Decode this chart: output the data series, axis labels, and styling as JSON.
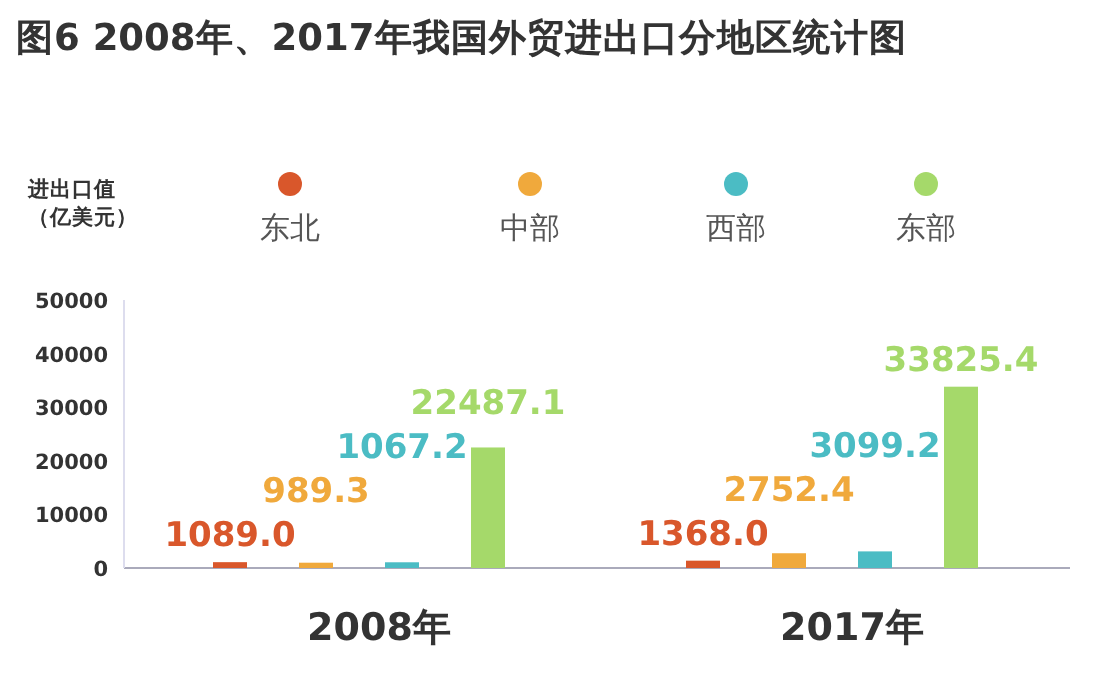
{
  "chart_data": {
    "type": "bar",
    "title": "图6  2008年、2017年我国外贸进出口分地区统计图",
    "ylabel": "进出口值（亿美元）",
    "categories": [
      "2008年",
      "2017年"
    ],
    "ylim": [
      0,
      50000
    ],
    "yticks": [
      0,
      10000,
      20000,
      30000,
      40000,
      50000
    ],
    "legend": "top",
    "series": [
      {
        "name": "东北",
        "color": "#d9572b",
        "values": [
          1089.0,
          1368.0
        ],
        "value_labels": [
          "1089.0",
          "1368.0"
        ]
      },
      {
        "name": "中部",
        "color": "#f0a93c",
        "values": [
          989.3,
          2752.4
        ],
        "value_labels": [
          "989.3",
          "2752.4"
        ]
      },
      {
        "name": "西部",
        "color": "#4bbcc4",
        "values": [
          1067.2,
          3099.2
        ],
        "value_labels": [
          "1067.2",
          "3099.2"
        ]
      },
      {
        "name": "东部",
        "color": "#a5d96a",
        "values": [
          22487.1,
          33825.4
        ],
        "value_labels": [
          "22487.1",
          "33825.4"
        ]
      }
    ]
  }
}
